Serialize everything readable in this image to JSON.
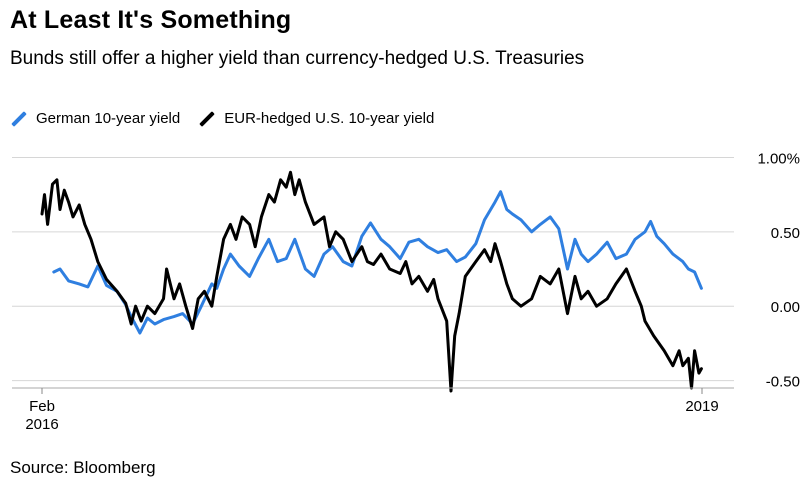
{
  "title": "At Least It's Something",
  "subtitle": "Bunds still offer a higher yield than currency-hedged U.S. Treasuries",
  "source": "Source: Bloomberg",
  "colors": {
    "german": "#2f7fe0",
    "hedged": "#000000",
    "grid": "#d6d6d6"
  },
  "chart_data": {
    "type": "line",
    "title": "At Least It's Something",
    "subtitle": "Bunds still offer a higher yield than currency-hedged U.S. Treasuries",
    "xlabel": "",
    "ylabel": "",
    "x_ticks": [
      {
        "date": "2016-02-01",
        "label_line1": "Feb",
        "label_line2": "2016"
      },
      {
        "date": "2019-01-01",
        "label_line1": "2019",
        "label_line2": ""
      }
    ],
    "y_ticks": [
      {
        "value": 1.0,
        "label": "1.00%"
      },
      {
        "value": 0.5,
        "label": "0.50"
      },
      {
        "value": 0.0,
        "label": "0.00"
      },
      {
        "value": -0.5,
        "label": "-0.50"
      }
    ],
    "ylim": [
      -0.55,
      1.05
    ],
    "xlim": [
      "2016-02-01",
      "2019-01-01"
    ],
    "grid": true,
    "legend_position": "top-left",
    "series": [
      {
        "name": "German 10-year yield",
        "color": "#2f7fe0",
        "points": [
          [
            "2016-02-20",
            0.23
          ],
          [
            "2016-03-01",
            0.25
          ],
          [
            "2016-03-15",
            0.17
          ],
          [
            "2016-04-01",
            0.15
          ],
          [
            "2016-04-15",
            0.13
          ],
          [
            "2016-05-01",
            0.27
          ],
          [
            "2016-05-15",
            0.14
          ],
          [
            "2016-06-01",
            0.1
          ],
          [
            "2016-06-15",
            0.01
          ],
          [
            "2016-06-24",
            -0.07
          ],
          [
            "2016-07-08",
            -0.18
          ],
          [
            "2016-07-20",
            -0.08
          ],
          [
            "2016-08-01",
            -0.12
          ],
          [
            "2016-08-15",
            -0.09
          ],
          [
            "2016-09-01",
            -0.07
          ],
          [
            "2016-09-15",
            -0.05
          ],
          [
            "2016-10-01",
            -0.12
          ],
          [
            "2016-10-15",
            0.0
          ],
          [
            "2016-11-01",
            0.15
          ],
          [
            "2016-11-09",
            0.12
          ],
          [
            "2016-11-20",
            0.25
          ],
          [
            "2016-12-01",
            0.35
          ],
          [
            "2016-12-15",
            0.27
          ],
          [
            "2017-01-01",
            0.2
          ],
          [
            "2017-01-15",
            0.32
          ],
          [
            "2017-02-01",
            0.45
          ],
          [
            "2017-02-15",
            0.3
          ],
          [
            "2017-03-01",
            0.32
          ],
          [
            "2017-03-15",
            0.45
          ],
          [
            "2017-04-01",
            0.25
          ],
          [
            "2017-04-15",
            0.2
          ],
          [
            "2017-05-01",
            0.35
          ],
          [
            "2017-05-15",
            0.4
          ],
          [
            "2017-06-01",
            0.3
          ],
          [
            "2017-06-15",
            0.27
          ],
          [
            "2017-07-01",
            0.47
          ],
          [
            "2017-07-15",
            0.56
          ],
          [
            "2017-08-01",
            0.45
          ],
          [
            "2017-08-15",
            0.4
          ],
          [
            "2017-09-01",
            0.32
          ],
          [
            "2017-09-15",
            0.43
          ],
          [
            "2017-10-01",
            0.45
          ],
          [
            "2017-10-15",
            0.4
          ],
          [
            "2017-11-01",
            0.36
          ],
          [
            "2017-11-15",
            0.38
          ],
          [
            "2017-12-01",
            0.3
          ],
          [
            "2017-12-15",
            0.33
          ],
          [
            "2018-01-01",
            0.42
          ],
          [
            "2018-01-15",
            0.58
          ],
          [
            "2018-02-01",
            0.7
          ],
          [
            "2018-02-10",
            0.77
          ],
          [
            "2018-02-20",
            0.65
          ],
          [
            "2018-03-01",
            0.62
          ],
          [
            "2018-03-15",
            0.58
          ],
          [
            "2018-04-01",
            0.5
          ],
          [
            "2018-04-15",
            0.55
          ],
          [
            "2018-05-01",
            0.6
          ],
          [
            "2018-05-15",
            0.52
          ],
          [
            "2018-05-29",
            0.25
          ],
          [
            "2018-06-10",
            0.45
          ],
          [
            "2018-06-20",
            0.35
          ],
          [
            "2018-07-01",
            0.3
          ],
          [
            "2018-07-15",
            0.35
          ],
          [
            "2018-08-01",
            0.43
          ],
          [
            "2018-08-15",
            0.32
          ],
          [
            "2018-09-01",
            0.35
          ],
          [
            "2018-09-15",
            0.45
          ],
          [
            "2018-10-01",
            0.5
          ],
          [
            "2018-10-10",
            0.57
          ],
          [
            "2018-10-20",
            0.47
          ],
          [
            "2018-11-01",
            0.42
          ],
          [
            "2018-11-15",
            0.35
          ],
          [
            "2018-12-01",
            0.3
          ],
          [
            "2018-12-10",
            0.25
          ],
          [
            "2018-12-20",
            0.23
          ],
          [
            "2018-12-31",
            0.12
          ]
        ]
      },
      {
        "name": "EUR-hedged U.S. 10-year yield",
        "color": "#000000",
        "points": [
          [
            "2016-02-01",
            0.62
          ],
          [
            "2016-02-05",
            0.75
          ],
          [
            "2016-02-10",
            0.55
          ],
          [
            "2016-02-18",
            0.82
          ],
          [
            "2016-02-25",
            0.85
          ],
          [
            "2016-03-01",
            0.65
          ],
          [
            "2016-03-08",
            0.78
          ],
          [
            "2016-03-15",
            0.7
          ],
          [
            "2016-03-22",
            0.6
          ],
          [
            "2016-04-01",
            0.68
          ],
          [
            "2016-04-10",
            0.55
          ],
          [
            "2016-04-20",
            0.45
          ],
          [
            "2016-05-01",
            0.3
          ],
          [
            "2016-05-15",
            0.18
          ],
          [
            "2016-06-01",
            0.1
          ],
          [
            "2016-06-15",
            0.02
          ],
          [
            "2016-06-24",
            -0.12
          ],
          [
            "2016-07-01",
            0.0
          ],
          [
            "2016-07-10",
            -0.1
          ],
          [
            "2016-07-20",
            0.0
          ],
          [
            "2016-08-01",
            -0.05
          ],
          [
            "2016-08-15",
            0.05
          ],
          [
            "2016-08-20",
            0.25
          ],
          [
            "2016-09-01",
            0.05
          ],
          [
            "2016-09-10",
            0.15
          ],
          [
            "2016-09-20",
            0.0
          ],
          [
            "2016-10-01",
            -0.15
          ],
          [
            "2016-10-10",
            0.05
          ],
          [
            "2016-10-20",
            0.1
          ],
          [
            "2016-11-01",
            0.0
          ],
          [
            "2016-11-09",
            0.2
          ],
          [
            "2016-11-20",
            0.45
          ],
          [
            "2016-12-01",
            0.55
          ],
          [
            "2016-12-10",
            0.45
          ],
          [
            "2016-12-20",
            0.6
          ],
          [
            "2017-01-01",
            0.55
          ],
          [
            "2017-01-10",
            0.4
          ],
          [
            "2017-01-20",
            0.6
          ],
          [
            "2017-02-01",
            0.75
          ],
          [
            "2017-02-10",
            0.7
          ],
          [
            "2017-02-20",
            0.85
          ],
          [
            "2017-03-01",
            0.8
          ],
          [
            "2017-03-08",
            0.9
          ],
          [
            "2017-03-15",
            0.75
          ],
          [
            "2017-03-22",
            0.85
          ],
          [
            "2017-04-01",
            0.7
          ],
          [
            "2017-04-15",
            0.55
          ],
          [
            "2017-05-01",
            0.6
          ],
          [
            "2017-05-10",
            0.4
          ],
          [
            "2017-05-20",
            0.5
          ],
          [
            "2017-06-01",
            0.45
          ],
          [
            "2017-06-15",
            0.3
          ],
          [
            "2017-07-01",
            0.4
          ],
          [
            "2017-07-10",
            0.3
          ],
          [
            "2017-07-20",
            0.28
          ],
          [
            "2017-08-01",
            0.35
          ],
          [
            "2017-08-15",
            0.25
          ],
          [
            "2017-09-01",
            0.22
          ],
          [
            "2017-09-10",
            0.3
          ],
          [
            "2017-09-20",
            0.15
          ],
          [
            "2017-10-01",
            0.2
          ],
          [
            "2017-10-15",
            0.1
          ],
          [
            "2017-10-25",
            0.18
          ],
          [
            "2017-11-01",
            0.05
          ],
          [
            "2017-11-15",
            -0.1
          ],
          [
            "2017-11-22",
            -0.57
          ],
          [
            "2017-11-28",
            -0.2
          ],
          [
            "2017-12-05",
            -0.05
          ],
          [
            "2017-12-15",
            0.2
          ],
          [
            "2018-01-01",
            0.3
          ],
          [
            "2018-01-15",
            0.38
          ],
          [
            "2018-01-25",
            0.3
          ],
          [
            "2018-02-01",
            0.42
          ],
          [
            "2018-02-10",
            0.3
          ],
          [
            "2018-02-20",
            0.15
          ],
          [
            "2018-03-01",
            0.05
          ],
          [
            "2018-03-15",
            0.0
          ],
          [
            "2018-04-01",
            0.05
          ],
          [
            "2018-04-15",
            0.2
          ],
          [
            "2018-05-01",
            0.15
          ],
          [
            "2018-05-15",
            0.25
          ],
          [
            "2018-05-29",
            -0.05
          ],
          [
            "2018-06-10",
            0.2
          ],
          [
            "2018-06-20",
            0.05
          ],
          [
            "2018-07-01",
            0.1
          ],
          [
            "2018-07-15",
            0.0
          ],
          [
            "2018-08-01",
            0.05
          ],
          [
            "2018-08-15",
            0.15
          ],
          [
            "2018-09-01",
            0.25
          ],
          [
            "2018-09-15",
            0.1
          ],
          [
            "2018-09-25",
            0.0
          ],
          [
            "2018-10-01",
            -0.1
          ],
          [
            "2018-10-15",
            -0.2
          ],
          [
            "2018-11-01",
            -0.3
          ],
          [
            "2018-11-15",
            -0.4
          ],
          [
            "2018-11-25",
            -0.3
          ],
          [
            "2018-12-01",
            -0.4
          ],
          [
            "2018-12-10",
            -0.35
          ],
          [
            "2018-12-15",
            -0.55
          ],
          [
            "2018-12-20",
            -0.3
          ],
          [
            "2018-12-27",
            -0.45
          ],
          [
            "2018-12-31",
            -0.42
          ]
        ]
      }
    ]
  }
}
